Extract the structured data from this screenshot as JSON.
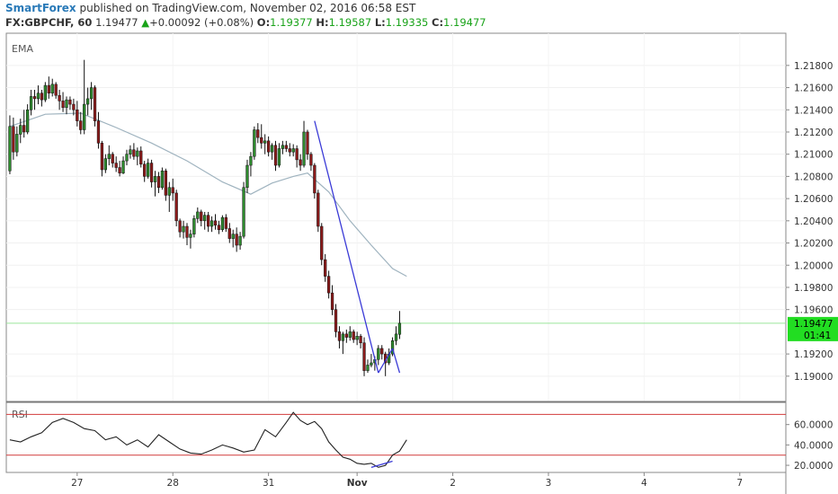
{
  "header": {
    "publisher": "SmartForex",
    "published_text": "published on TradingView.com, November 02, 2016 06:58 EST",
    "symbol": "FX:GBPCHF, 60",
    "last": "1.19477",
    "change_arrow": "▲",
    "change": "+0.00092 (+0.08%)",
    "open_label": "O:",
    "open": "1.19377",
    "high_label": "H:",
    "high": "1.19587",
    "low_label": "L:",
    "low": "1.19335",
    "close_label": "C:",
    "close": "1.19477"
  },
  "colors": {
    "up_candle": "#2e8b2e",
    "down_candle": "#8b1a1a",
    "ema": "#9fb3bf",
    "rsi": "#222222",
    "rsi_bands": "#d23c3c",
    "trendline": "#3a3ad6",
    "price_tag": "#22dd22"
  },
  "chart_data": [
    {
      "type": "candlestick",
      "title": "",
      "indicator_label": "EMA",
      "y_ticks": [
        1.218,
        1.216,
        1.214,
        1.212,
        1.21,
        1.208,
        1.206,
        1.204,
        1.202,
        1.2,
        1.198,
        1.196,
        1.192,
        1.19
      ],
      "y_tick_labels": [
        "1.21800",
        "1.21600",
        "1.21400",
        "1.21200",
        "1.21000",
        "1.20800",
        "1.20600",
        "1.20400",
        "1.20200",
        "1.20000",
        "1.19800",
        "1.19600",
        "1.19200",
        "1.19000"
      ],
      "ylim": [
        1.1878,
        1.2209
      ],
      "x_tick_labels": [
        "27",
        "28",
        "31",
        "Nov",
        "2",
        "3",
        "4",
        "7"
      ],
      "x_tick_index": [
        19,
        46,
        73,
        98,
        125,
        152,
        179,
        206
      ],
      "xlim": [
        -1,
        219
      ],
      "last_price_label": "1.19477",
      "countdown_label": "01:41",
      "last_price": 1.19477,
      "ohlc": [
        [
          1.2085,
          1.2135,
          1.2082,
          1.2125
        ],
        [
          1.2125,
          1.2133,
          1.2095,
          1.2102
        ],
        [
          1.2102,
          1.2125,
          1.2098,
          1.2118
        ],
        [
          1.2118,
          1.2132,
          1.211,
          1.2126
        ],
        [
          1.2126,
          1.214,
          1.2115,
          1.212
        ],
        [
          1.212,
          1.2145,
          1.2118,
          1.214
        ],
        [
          1.214,
          1.2158,
          1.2135,
          1.2152
        ],
        [
          1.2152,
          1.2158,
          1.214,
          1.215
        ],
        [
          1.215,
          1.2162,
          1.2145,
          1.2155
        ],
        [
          1.2155,
          1.2158,
          1.2143,
          1.2149
        ],
        [
          1.2149,
          1.2165,
          1.2147,
          1.2162
        ],
        [
          1.2162,
          1.217,
          1.215,
          1.2155
        ],
        [
          1.2155,
          1.2168,
          1.2152,
          1.2163
        ],
        [
          1.2163,
          1.2165,
          1.215,
          1.2153
        ],
        [
          1.2153,
          1.2158,
          1.214,
          1.2148
        ],
        [
          1.2148,
          1.2156,
          1.2138,
          1.2142
        ],
        [
          1.2142,
          1.2152,
          1.2136,
          1.2149
        ],
        [
          1.2149,
          1.2152,
          1.214,
          1.2145
        ],
        [
          1.2145,
          1.215,
          1.2135,
          1.214
        ],
        [
          1.214,
          1.2148,
          1.2125,
          1.213
        ],
        [
          1.213,
          1.2138,
          1.2118,
          1.2122
        ],
        [
          1.2122,
          1.2185,
          1.2118,
          1.2145
        ],
        [
          1.2145,
          1.216,
          1.2135,
          1.215
        ],
        [
          1.215,
          1.2165,
          1.214,
          1.216
        ],
        [
          1.216,
          1.2162,
          1.2125,
          1.213
        ],
        [
          1.213,
          1.2138,
          1.2105,
          1.211
        ],
        [
          1.211,
          1.2112,
          1.208,
          1.2086
        ],
        [
          1.2086,
          1.21,
          1.2083,
          1.2096
        ],
        [
          1.2096,
          1.2108,
          1.209,
          1.21
        ],
        [
          1.21,
          1.2102,
          1.2088,
          1.2092
        ],
        [
          1.2092,
          1.2098,
          1.2084,
          1.2088
        ],
        [
          1.2088,
          1.2094,
          1.208,
          1.2083
        ],
        [
          1.2083,
          1.2098,
          1.2082,
          1.2094
        ],
        [
          1.2094,
          1.2104,
          1.209,
          1.21
        ],
        [
          1.21,
          1.2108,
          1.2096,
          1.2104
        ],
        [
          1.2104,
          1.211,
          1.2095,
          1.2098
        ],
        [
          1.2098,
          1.2106,
          1.209,
          1.2103
        ],
        [
          1.2103,
          1.2107,
          1.2088,
          1.2091
        ],
        [
          1.2091,
          1.2094,
          1.2075,
          1.208
        ],
        [
          1.208,
          1.2096,
          1.2078,
          1.2092
        ],
        [
          1.2092,
          1.2095,
          1.207,
          1.2075
        ],
        [
          1.2075,
          1.2085,
          1.2062,
          1.208
        ],
        [
          1.208,
          1.2084,
          1.2065,
          1.207
        ],
        [
          1.207,
          1.2088,
          1.2068,
          1.2085
        ],
        [
          1.2085,
          1.2087,
          1.2058,
          1.2063
        ],
        [
          1.2063,
          1.2075,
          1.2048,
          1.207
        ],
        [
          1.207,
          1.2078,
          1.2058,
          1.2065
        ],
        [
          1.2065,
          1.2068,
          1.2035,
          1.204
        ],
        [
          1.204,
          1.2042,
          1.2025,
          1.203
        ],
        [
          1.203,
          1.204,
          1.2024,
          1.2035
        ],
        [
          1.2035,
          1.2038,
          1.2018,
          1.2025
        ],
        [
          1.2025,
          1.2032,
          1.2015,
          1.2028
        ],
        [
          1.2028,
          1.2045,
          1.2025,
          1.2042
        ],
        [
          1.2042,
          1.2052,
          1.2038,
          1.2048
        ],
        [
          1.2048,
          1.205,
          1.2035,
          1.204
        ],
        [
          1.204,
          1.2048,
          1.2032,
          1.2045
        ],
        [
          1.2045,
          1.2048,
          1.203,
          1.2035
        ],
        [
          1.2035,
          1.2044,
          1.203,
          1.204
        ],
        [
          1.204,
          1.2046,
          1.2032,
          1.2036
        ],
        [
          1.2036,
          1.204,
          1.2028,
          1.2032
        ],
        [
          1.2032,
          1.2045,
          1.203,
          1.2043
        ],
        [
          1.2043,
          1.2046,
          1.203,
          1.2033
        ],
        [
          1.2033,
          1.2038,
          1.202,
          1.2024
        ],
        [
          1.2024,
          1.2032,
          1.2016,
          1.2028
        ],
        [
          1.2028,
          1.2034,
          1.2012,
          1.2018
        ],
        [
          1.2018,
          1.203,
          1.2014,
          1.2026
        ],
        [
          1.2026,
          1.2075,
          1.2024,
          1.207
        ],
        [
          1.207,
          1.2095,
          1.2065,
          1.209
        ],
        [
          1.209,
          1.2102,
          1.208,
          1.2098
        ],
        [
          1.2098,
          1.2125,
          1.2095,
          1.2122
        ],
        [
          1.2122,
          1.2128,
          1.211,
          1.2115
        ],
        [
          1.2115,
          1.2127,
          1.2105,
          1.211
        ],
        [
          1.211,
          1.2118,
          1.21,
          1.2112
        ],
        [
          1.2112,
          1.2116,
          1.2098,
          1.2102
        ],
        [
          1.2102,
          1.211,
          1.2095,
          1.2108
        ],
        [
          1.2108,
          1.2112,
          1.2085,
          1.209
        ],
        [
          1.209,
          1.211,
          1.2088,
          1.2105
        ],
        [
          1.2105,
          1.2112,
          1.21,
          1.2108
        ],
        [
          1.2108,
          1.2112,
          1.2102,
          1.2105
        ],
        [
          1.2105,
          1.211,
          1.2098,
          1.2102
        ],
        [
          1.2102,
          1.2109,
          1.2098,
          1.2105
        ],
        [
          1.2105,
          1.2108,
          1.2088,
          1.2095
        ],
        [
          1.2095,
          1.21,
          1.2085,
          1.209
        ],
        [
          1.209,
          1.213,
          1.2088,
          1.212
        ],
        [
          1.212,
          1.2122,
          1.2095,
          1.21
        ],
        [
          1.21,
          1.2102,
          1.2085,
          1.209
        ],
        [
          1.209,
          1.2092,
          1.206,
          1.2065
        ],
        [
          1.2065,
          1.2068,
          1.203,
          1.2035
        ],
        [
          1.2035,
          1.2038,
          1.2,
          1.2005
        ],
        [
          1.2005,
          1.201,
          1.1985,
          1.199
        ],
        [
          1.199,
          1.1995,
          1.197,
          1.1975
        ],
        [
          1.1975,
          1.1982,
          1.1955,
          1.196
        ],
        [
          1.196,
          1.1965,
          1.1935,
          1.194
        ],
        [
          1.194,
          1.1945,
          1.1925,
          1.1932
        ],
        [
          1.1932,
          1.194,
          1.192,
          1.1938
        ],
        [
          1.1938,
          1.1942,
          1.193,
          1.1935
        ],
        [
          1.1935,
          1.1945,
          1.1932,
          1.194
        ],
        [
          1.194,
          1.1942,
          1.193,
          1.1933
        ],
        [
          1.1933,
          1.194,
          1.1928,
          1.1936
        ],
        [
          1.1936,
          1.1938,
          1.1925,
          1.193
        ],
        [
          1.193,
          1.1935,
          1.19,
          1.1905
        ],
        [
          1.1905,
          1.1915,
          1.1903,
          1.191
        ],
        [
          1.191,
          1.192,
          1.1908,
          1.1912
        ],
        [
          1.1912,
          1.1918,
          1.1905,
          1.1915
        ],
        [
          1.1915,
          1.1928,
          1.191,
          1.1925
        ],
        [
          1.1925,
          1.1928,
          1.1915,
          1.192
        ],
        [
          1.192,
          1.1922,
          1.19,
          1.1912
        ],
        [
          1.1912,
          1.1925,
          1.191,
          1.192
        ],
        [
          1.192,
          1.1935,
          1.1918,
          1.1932
        ],
        [
          1.1932,
          1.1945,
          1.1928,
          1.1938
        ],
        [
          1.19377,
          1.19587,
          1.19335,
          1.19477
        ]
      ],
      "ema": [
        [
          0,
          1.2125
        ],
        [
          10,
          1.2136
        ],
        [
          20,
          1.2137
        ],
        [
          30,
          1.2124
        ],
        [
          40,
          1.211
        ],
        [
          50,
          1.2094
        ],
        [
          60,
          1.2075
        ],
        [
          68,
          1.2064
        ],
        [
          74,
          1.2074
        ],
        [
          80,
          1.208
        ],
        [
          84,
          1.2083
        ],
        [
          90,
          1.2066
        ],
        [
          96,
          1.204
        ],
        [
          102,
          1.2018
        ],
        [
          108,
          1.1997
        ],
        [
          112,
          1.199
        ]
      ],
      "trendlines": [
        [
          [
            86,
            1.213
          ],
          [
            104,
            1.1903
          ]
        ],
        [
          [
            104,
            1.1903
          ],
          [
            108,
            1.1925
          ]
        ],
        [
          [
            108,
            1.1925
          ],
          [
            110,
            1.1903
          ]
        ]
      ]
    },
    {
      "type": "line",
      "title": "",
      "indicator_label": "RSI",
      "y_ticks": [
        20,
        40,
        60
      ],
      "y_tick_labels": [
        "20.0000",
        "40.0000",
        "60.0000"
      ],
      "ylim": [
        13,
        80
      ],
      "bands": [
        30,
        70
      ],
      "rsi": [
        [
          0,
          45
        ],
        [
          3,
          43
        ],
        [
          6,
          48
        ],
        [
          9,
          52
        ],
        [
          12,
          62
        ],
        [
          15,
          66
        ],
        [
          18,
          62
        ],
        [
          21,
          56
        ],
        [
          24,
          54
        ],
        [
          27,
          45
        ],
        [
          30,
          48
        ],
        [
          33,
          40
        ],
        [
          36,
          45
        ],
        [
          39,
          38
        ],
        [
          42,
          50
        ],
        [
          45,
          43
        ],
        [
          48,
          36
        ],
        [
          51,
          32
        ],
        [
          54,
          31
        ],
        [
          57,
          35
        ],
        [
          60,
          40
        ],
        [
          63,
          37
        ],
        [
          66,
          33
        ],
        [
          69,
          35
        ],
        [
          72,
          55
        ],
        [
          75,
          48
        ],
        [
          78,
          62
        ],
        [
          80,
          72
        ],
        [
          82,
          64
        ],
        [
          84,
          60
        ],
        [
          86,
          63
        ],
        [
          88,
          56
        ],
        [
          90,
          43
        ],
        [
          92,
          35
        ],
        [
          94,
          28
        ],
        [
          96,
          26
        ],
        [
          98,
          22
        ],
        [
          100,
          21
        ],
        [
          102,
          22
        ],
        [
          104,
          18
        ],
        [
          106,
          20
        ],
        [
          108,
          30
        ],
        [
          110,
          34
        ],
        [
          112,
          45
        ]
      ],
      "trendline": [
        [
          102,
          18
        ],
        [
          108,
          24
        ]
      ]
    }
  ]
}
